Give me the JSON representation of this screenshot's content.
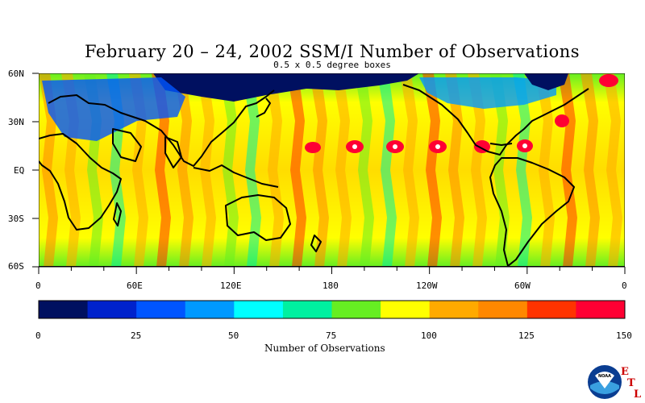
{
  "title": "February 20 – 24, 2002 SSM/I Number of Observations",
  "subtitle": "0.5 x 0.5 degree boxes",
  "map": {
    "lat_labels": [
      "60N",
      "30N",
      "EQ",
      "30S",
      "60S"
    ],
    "lon_labels": [
      "0",
      "60E",
      "120E",
      "180",
      "120W",
      "60W",
      "0"
    ],
    "lat_range": [
      -60,
      60
    ],
    "lon_range": [
      0,
      360
    ]
  },
  "colorbar": {
    "title": "Number of Observations",
    "tick_labels": [
      "0",
      "25",
      "50",
      "75",
      "100",
      "125",
      "150"
    ],
    "range": [
      0,
      150
    ],
    "step": 12.5,
    "colors": [
      "#001060",
      "#0022cc",
      "#0055ff",
      "#0099ff",
      "#00ffff",
      "#00f0a0",
      "#66ee22",
      "#ffff00",
      "#ffaa00",
      "#ff8800",
      "#ff3300",
      "#ff0033"
    ]
  },
  "logo": {
    "text": "NOAA",
    "letters": [
      "E",
      "T",
      "L"
    ]
  }
}
